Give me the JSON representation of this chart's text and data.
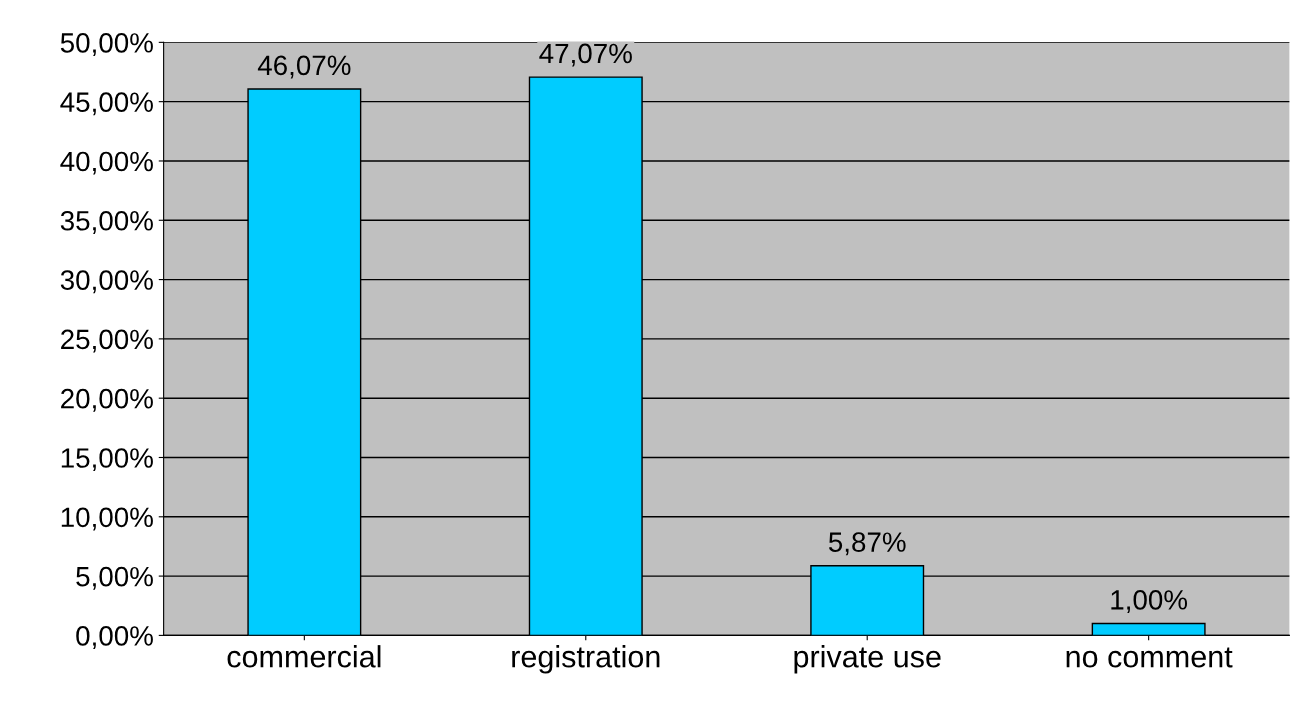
{
  "chart_data": {
    "type": "bar",
    "categories": [
      "commercial",
      "registration",
      "private use",
      "no comment"
    ],
    "values": [
      46.07,
      47.07,
      5.87,
      1.0
    ],
    "color": "#00ccff",
    "value_labels": [
      "46,07%",
      "47,07%",
      "5,87%",
      "1,00%"
    ],
    "ylim": [
      0,
      50
    ],
    "yticks": [
      {
        "value": 0,
        "label": "0,00%"
      },
      {
        "value": 5,
        "label": "5,00%"
      },
      {
        "value": 10,
        "label": "10,00%"
      },
      {
        "value": 15,
        "label": "15,00%"
      },
      {
        "value": 20,
        "label": "20,00%"
      },
      {
        "value": 25,
        "label": "25,00%"
      },
      {
        "value": 30,
        "label": "30,00%"
      },
      {
        "value": 35,
        "label": "35,00%"
      },
      {
        "value": 40,
        "label": "40,00%"
      },
      {
        "value": 45,
        "label": "45,00%"
      },
      {
        "value": 50,
        "label": "50,00%"
      }
    ],
    "grid": "y"
  }
}
